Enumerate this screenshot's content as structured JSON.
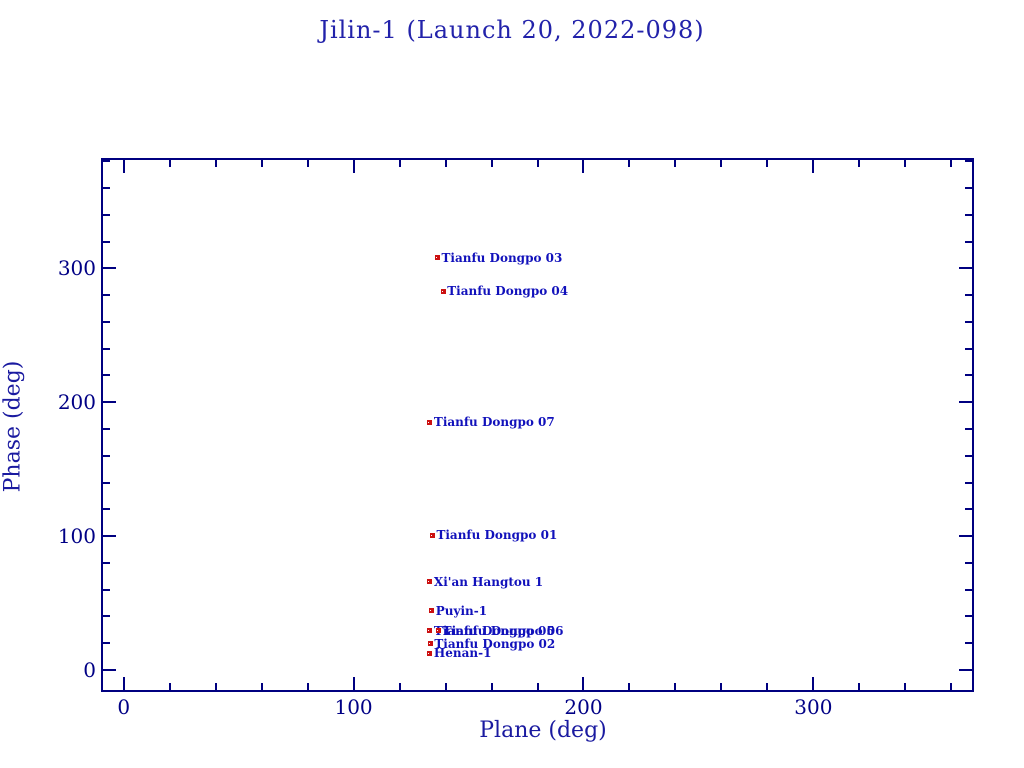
{
  "title": "Jilin-1 (Launch 20, 2022-098)",
  "colors": {
    "background": "#ffffff",
    "axis_line": "#000080",
    "tick_label": "#000085",
    "title_text": "#2222aa",
    "axis_title_text": "#1a1aa0",
    "point_label_text": "#1111bb",
    "marker_fill": "#cc1111"
  },
  "chart_data": {
    "type": "scatter",
    "title": "Jilin-1 (Launch 20, 2022-098)",
    "xlabel": "Plane (deg)",
    "ylabel": "Phase (deg)",
    "xlim": [
      -9,
      369
    ],
    "ylim": [
      -15,
      381
    ],
    "x_major_ticks": [
      0,
      100,
      200,
      300
    ],
    "y_major_ticks": [
      0,
      100,
      200,
      300
    ],
    "x_tick_labels": [
      "0",
      "100",
      "200",
      "300"
    ],
    "y_tick_labels": [
      "0",
      "100",
      "200",
      "300"
    ],
    "minor_tick_step": 20,
    "grid": false,
    "legend": "none",
    "marker": "filled-red-square-with-dot",
    "points": [
      {
        "label": "Tianfu Dongpo 03",
        "plane": 136.5,
        "phase": 308
      },
      {
        "label": "Tianfu Dongpo 04",
        "plane": 139.0,
        "phase": 283
      },
      {
        "label": "Tianfu Dongpo 07",
        "plane": 133.2,
        "phase": 185
      },
      {
        "label": "Tianfu Dongpo 01",
        "plane": 134.3,
        "phase": 100.5
      },
      {
        "label": "Xi'an Hangtou 1",
        "plane": 133.2,
        "phase": 65.7
      },
      {
        "label": "Puyin-1",
        "plane": 134.0,
        "phase": 44.4
      },
      {
        "label": "Tianfu Dongpo 05",
        "plane": 133.2,
        "phase": 29.2
      },
      {
        "label": "Tianfu Dongpo 06",
        "plane": 137.0,
        "phase": 29.2
      },
      {
        "label": "Tianfu Dongpo 02",
        "plane": 133.4,
        "phase": 19.5
      },
      {
        "label": "Henan-1",
        "plane": 133.2,
        "phase": 12.3
      }
    ]
  }
}
